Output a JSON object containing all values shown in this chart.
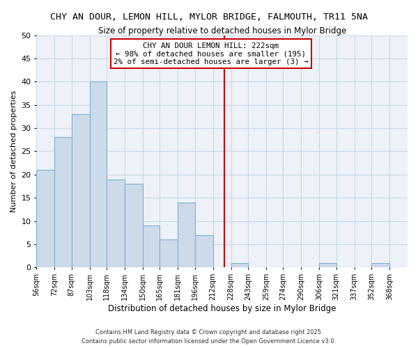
{
  "title": "CHY AN DOUR, LEMON HILL, MYLOR BRIDGE, FALMOUTH, TR11 5NA",
  "subtitle": "Size of property relative to detached houses in Mylor Bridge",
  "xlabel": "Distribution of detached houses by size in Mylor Bridge",
  "ylabel": "Number of detached properties",
  "bar_color": "#cddaea",
  "bar_edge_color": "#7bafd4",
  "grid_color": "#c8d8e8",
  "background_color": "#eef2f8",
  "categories": [
    "56sqm",
    "72sqm",
    "87sqm",
    "103sqm",
    "118sqm",
    "134sqm",
    "150sqm",
    "165sqm",
    "181sqm",
    "196sqm",
    "212sqm",
    "228sqm",
    "243sqm",
    "259sqm",
    "274sqm",
    "290sqm",
    "306sqm",
    "321sqm",
    "337sqm",
    "352sqm",
    "368sqm"
  ],
  "values": [
    21,
    28,
    33,
    40,
    19,
    18,
    9,
    6,
    14,
    7,
    0,
    1,
    0,
    0,
    0,
    0,
    1,
    0,
    0,
    1,
    0
  ],
  "bin_edges": [
    56,
    72,
    87,
    103,
    118,
    134,
    150,
    165,
    181,
    196,
    212,
    228,
    243,
    259,
    274,
    290,
    306,
    321,
    337,
    352,
    368,
    384
  ],
  "ylim": [
    0,
    50
  ],
  "yticks": [
    0,
    5,
    10,
    15,
    20,
    25,
    30,
    35,
    40,
    45,
    50
  ],
  "vline_x": 222,
  "vline_color": "#cc0000",
  "legend_title": "CHY AN DOUR LEMON HILL: 222sqm",
  "legend_line1": "← 98% of detached houses are smaller (195)",
  "legend_line2": "2% of semi-detached houses are larger (3) →",
  "footnote1": "Contains HM Land Registry data © Crown copyright and database right 2025.",
  "footnote2": "Contains public sector information licensed under the Open Government Licence v3.0."
}
